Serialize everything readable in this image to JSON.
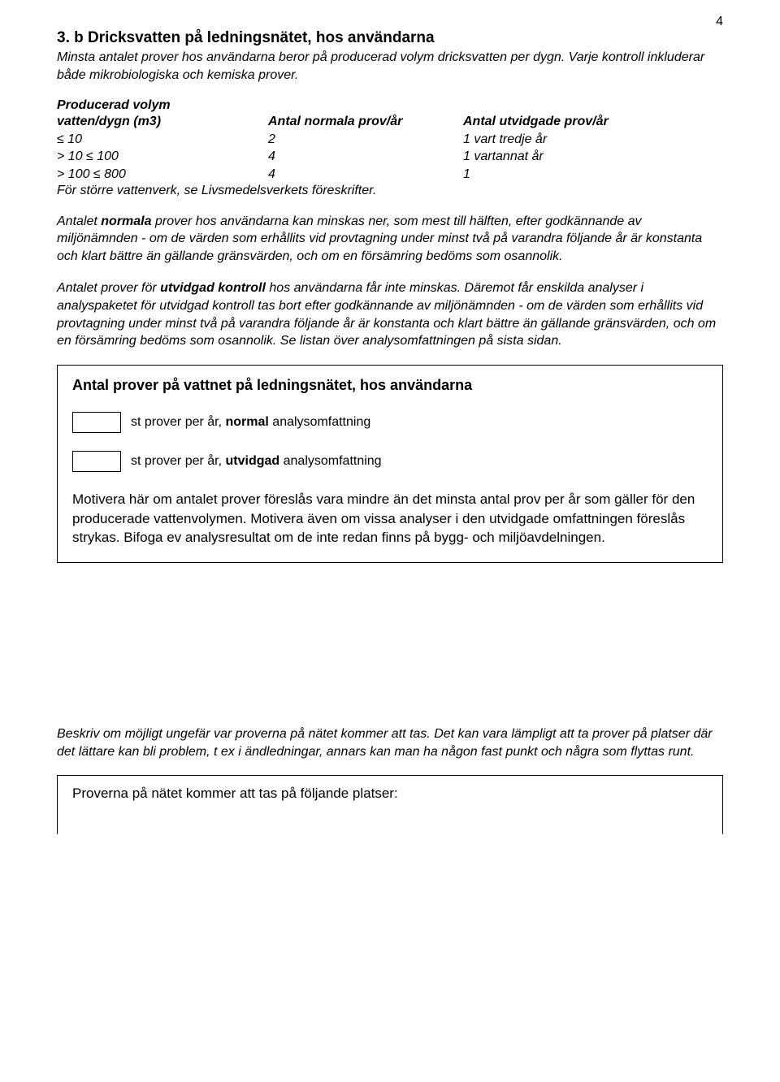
{
  "page_number": "4",
  "section": {
    "heading": "3. b Dricksvatten på ledningsnätet, hos användarna",
    "intro": "Minsta antalet prover hos användarna beror på producerad volym dricksvatten per dygn. Varje kontroll inkluderar både mikrobiologiska och kemiska prover."
  },
  "table": {
    "header_line1": "Producerad volym",
    "col1": "vatten/dygn (m3)",
    "col2": "Antal normala prov/år",
    "col3": "Antal utvidgade prov/år",
    "rows": [
      {
        "c1": "≤ 10",
        "c2": "2",
        "c3": "1 vart tredje år"
      },
      {
        "c1": "> 10   ≤ 100",
        "c2": "4",
        "c3": "1 vartannat år"
      },
      {
        "c1": "> 100   ≤ 800",
        "c2": "4",
        "c3": "1"
      }
    ],
    "note": "För större vattenverk, se Livsmedelsverkets föreskrifter."
  },
  "para1": {
    "pre": "Antalet ",
    "bold": "normala",
    "post": " prover hos användarna kan minskas ner, som mest till hälften, efter godkännande av miljönämnden - om de värden som erhållits vid provtagning under minst två på varandra följande år är konstanta och klart bättre än gällande gränsvärden, och om en försämring bedöms som osannolik."
  },
  "para2": {
    "pre": "Antalet prover för ",
    "bold": "utvidgad kontroll",
    "post": " hos användarna får inte minskas. Däremot får enskilda analyser i analyspaketet för utvidgad kontroll tas bort efter godkännande av miljönämnden - om de värden som erhållits vid provtagning under minst två på varandra följande år är konstanta och klart bättre än gällande gränsvärden, och om en försämring bedöms som osannolik. Se listan över analysomfattningen på sista sidan."
  },
  "form": {
    "title": "Antal prover på vattnet på ledningsnätet, hos användarna",
    "row1": {
      "pre": "st prover per år, ",
      "bold": "normal",
      "post": " analysomfattning"
    },
    "row2": {
      "pre": "st prover per år, ",
      "bold": "utvidgad",
      "post": " analysomfattning"
    },
    "motiv": "Motivera här om antalet prover föreslås vara mindre än det minsta antal prov per år som gäller för den producerade vattenvolymen. Motivera även om vissa analyser i den utvidgade omfattningen föreslås strykas. Bifoga ev analysresultat om de inte redan finns på bygg- och miljöavdelningen."
  },
  "below": "Beskriv om möjligt ungefär var proverna på nätet kommer att tas. Det kan vara lämpligt att ta prover på platser där det lättare kan bli problem, t ex i ändledningar, annars kan man ha någon fast punkt och några som flyttas runt.",
  "bottom_box": "Proverna på nätet kommer att tas på följande platser:"
}
